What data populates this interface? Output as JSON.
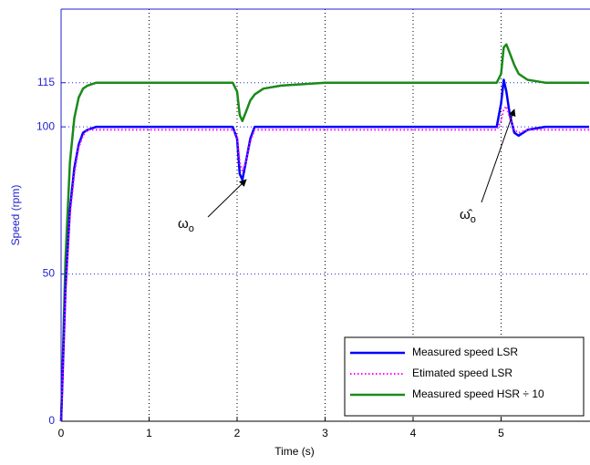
{
  "chart_data": {
    "type": "line",
    "xlabel": "Time (s)",
    "ylabel": "Speed (rpm)",
    "x": [
      0,
      0.05,
      0.1,
      0.15,
      0.2,
      0.25,
      0.3,
      0.4,
      0.6,
      1.0,
      1.5,
      1.95,
      2.0,
      2.03,
      2.06,
      2.1,
      2.15,
      2.2,
      2.3,
      2.5,
      3,
      3.5,
      4,
      4.5,
      4.95,
      5.0,
      5.03,
      5.06,
      5.1,
      5.15,
      5.2,
      5.3,
      5.5,
      6
    ],
    "series": [
      {
        "name": "Measured speed LSR",
        "color": "#0000ff",
        "style": "solid",
        "values": [
          0,
          45,
          72,
          86,
          94,
          98,
          99,
          100,
          100,
          100,
          100,
          100,
          96,
          84,
          82,
          88,
          96,
          100,
          100,
          100,
          100,
          100,
          100,
          100,
          100,
          108,
          116,
          112,
          104,
          98,
          97,
          99,
          100,
          100
        ]
      },
      {
        "name": "Etimated speed LSR",
        "color": "#ff00ff",
        "style": "dotted",
        "values": [
          0,
          42,
          70,
          84,
          93,
          97,
          99,
          99,
          99,
          99,
          99,
          99,
          97,
          88,
          85,
          88,
          95,
          99,
          99,
          99,
          99,
          99,
          99,
          99,
          99,
          102,
          106,
          107,
          103,
          99,
          98,
          99,
          99,
          99
        ]
      },
      {
        "name": "Measured speed HSR ÷ 10",
        "color": "#1a8a1a",
        "style": "solid",
        "values": [
          0,
          55,
          88,
          103,
          110,
          113,
          114,
          115,
          115,
          115,
          115,
          115,
          112,
          104,
          102,
          105,
          109,
          111,
          113,
          114,
          115,
          115,
          115,
          115,
          115,
          118,
          127,
          128,
          125,
          121,
          118,
          116,
          115,
          115
        ]
      }
    ],
    "xlim": [
      0,
      6
    ],
    "ylim": [
      0,
      140
    ],
    "xticks": [
      0,
      1,
      2,
      3,
      4,
      5
    ],
    "yticks": [
      0,
      50,
      100,
      115
    ],
    "grid": true,
    "legend": "lower right",
    "annotations": [
      {
        "text": "ω",
        "subscript": "o"
      },
      {
        "text": "ω̂",
        "subscript": "o"
      }
    ]
  }
}
